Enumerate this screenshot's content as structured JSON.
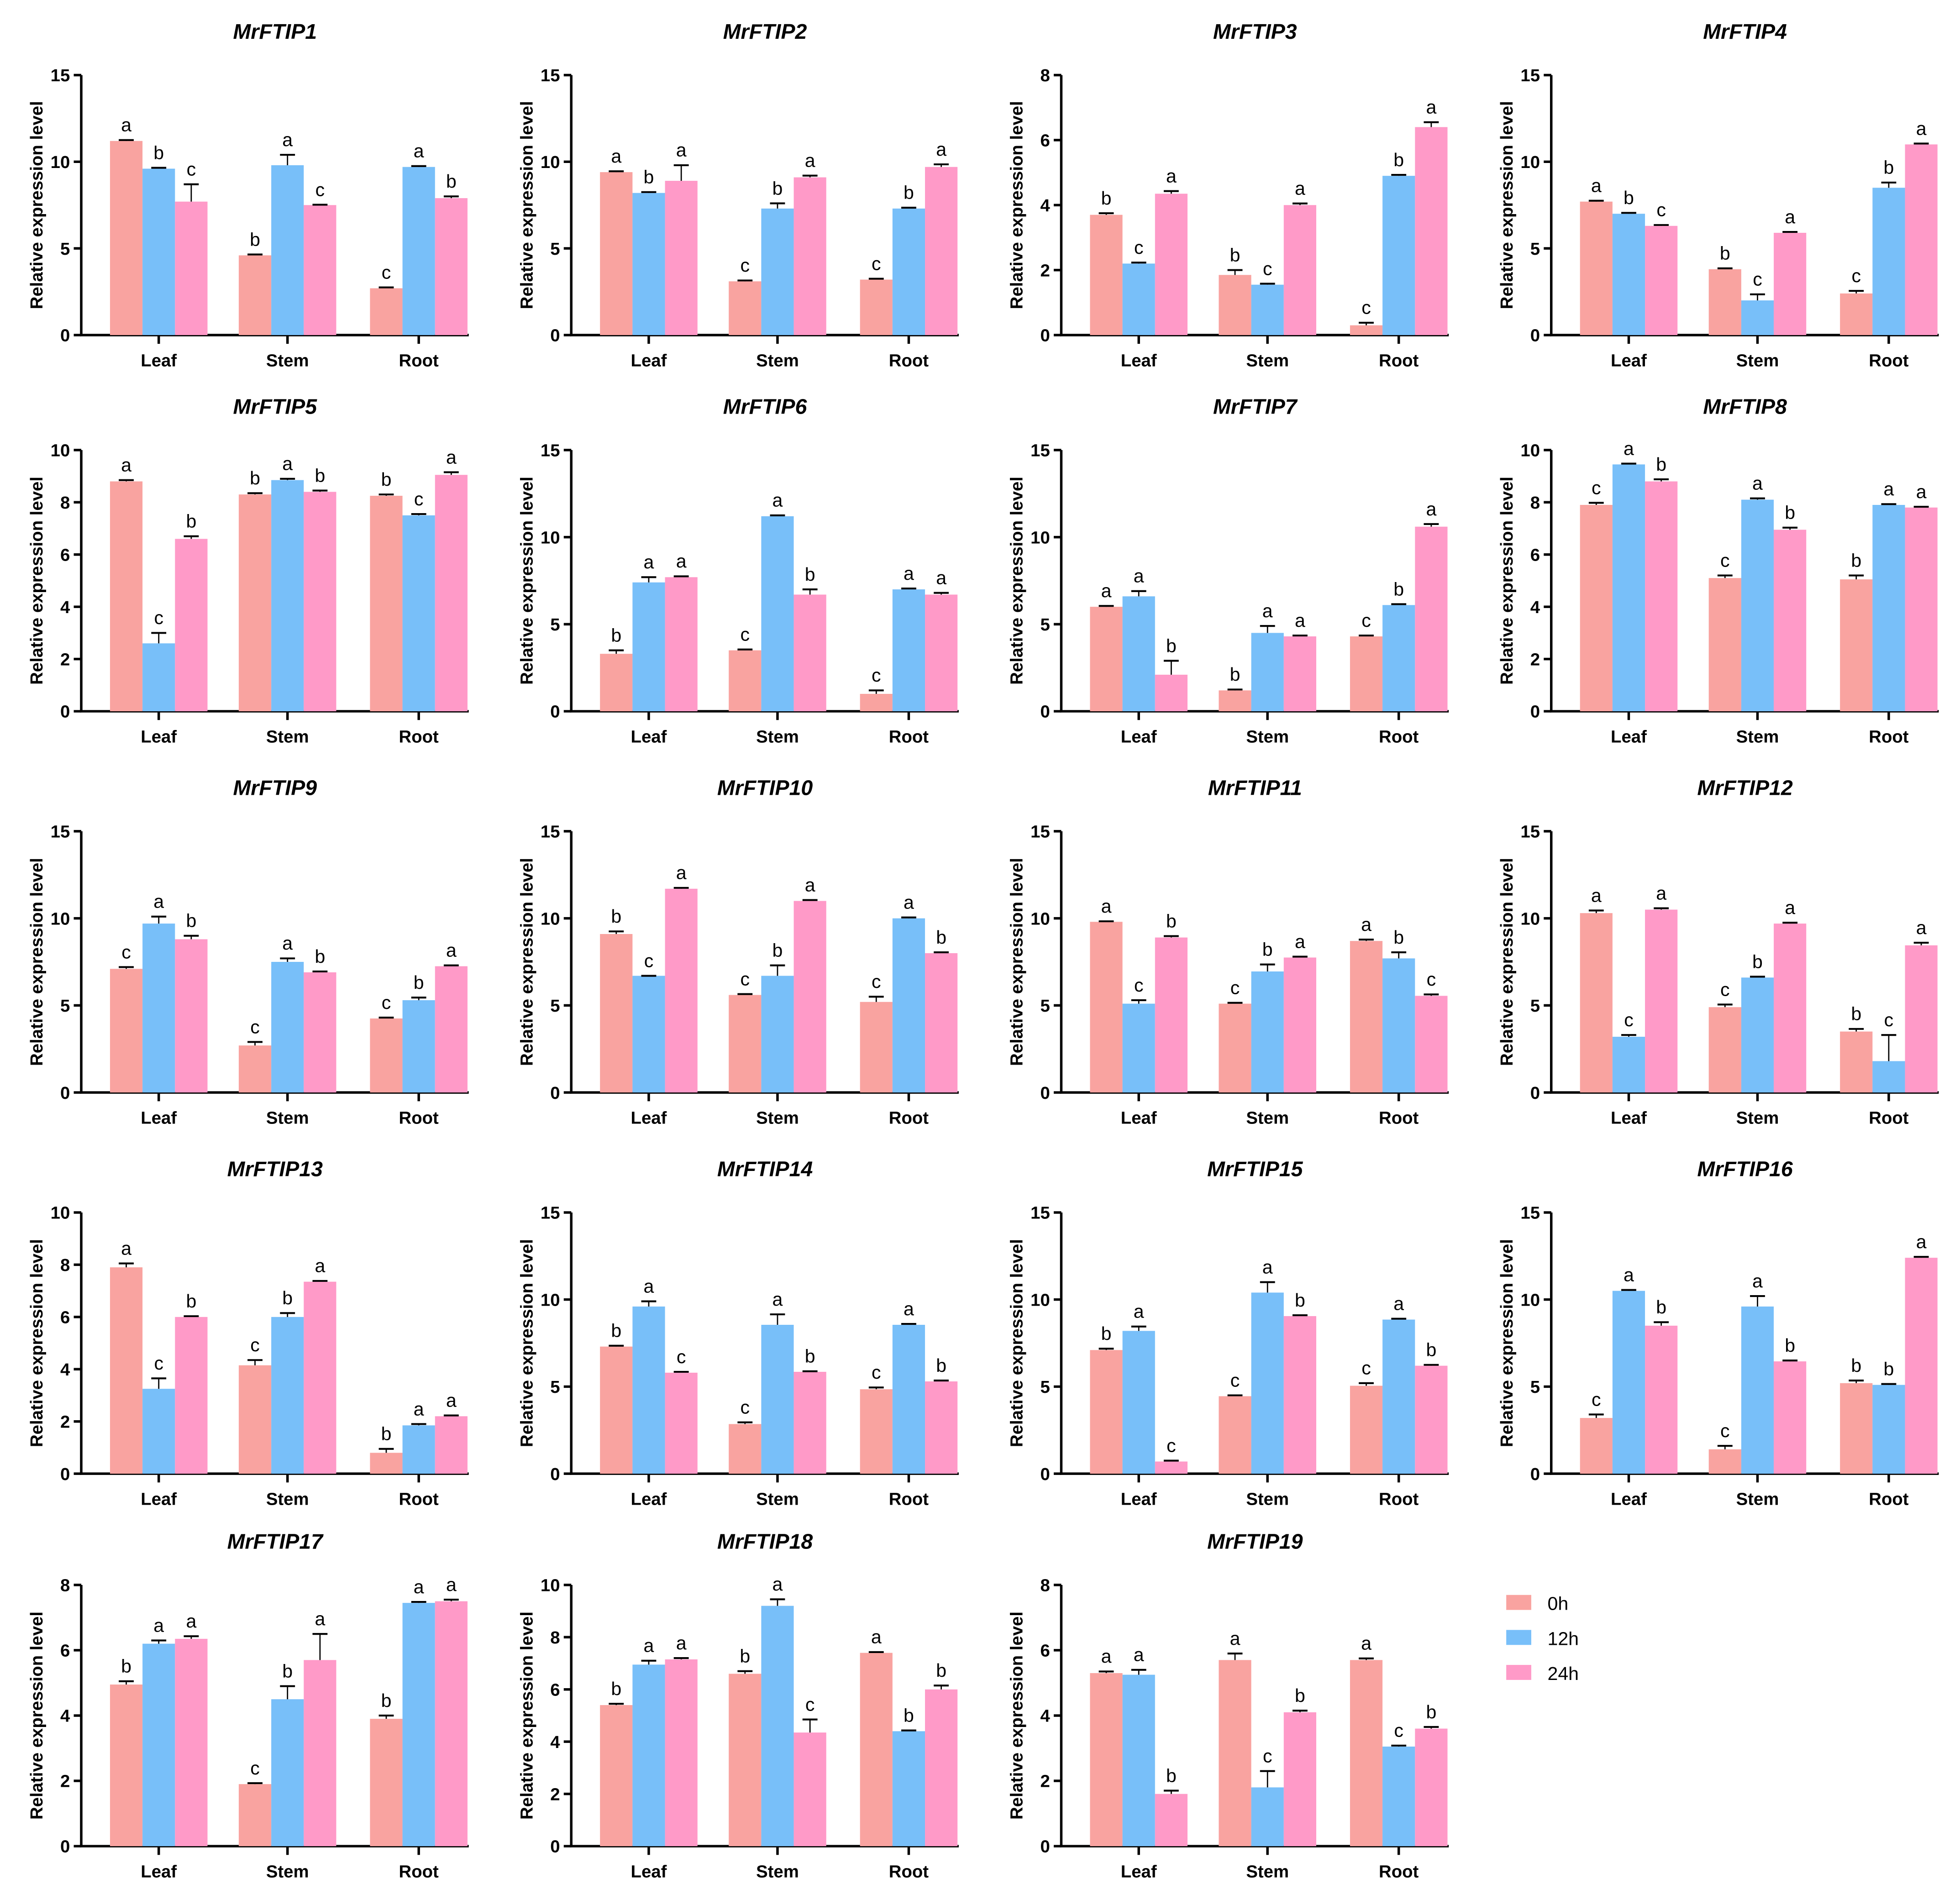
{
  "chart_data": {
    "type": "bar",
    "ylabel": "Relative expression level",
    "categories": [
      "Leaf",
      "Stem",
      "Root"
    ],
    "series_names": [
      "0h",
      "12h",
      "24h"
    ],
    "colors": {
      "0h": "#F9A3A0",
      "12h": "#78BFF9",
      "24h": "#FF9AC8"
    },
    "legend": {
      "position": "bottom-right",
      "entries": [
        "0h",
        "12h",
        "24h"
      ]
    },
    "panels": [
      {
        "title": "MrFTIP1",
        "ylim": [
          0,
          15
        ],
        "yticks": [
          "0",
          "5",
          "10",
          "15"
        ],
        "values": [
          [
            11.2,
            9.6,
            7.7
          ],
          [
            4.6,
            9.8,
            7.5
          ],
          [
            2.7,
            9.7,
            7.9
          ]
        ],
        "errors": [
          [
            0.05,
            0.05,
            1.0
          ],
          [
            0.05,
            0.6,
            0.02
          ],
          [
            0.05,
            0.05,
            0.1
          ]
        ],
        "letters": [
          [
            "a",
            "b",
            "c"
          ],
          [
            "b",
            "a",
            "c"
          ],
          [
            "c",
            "a",
            "b"
          ]
        ]
      },
      {
        "title": "MrFTIP2",
        "ylim": [
          0,
          15
        ],
        "yticks": [
          "0",
          "5",
          "10",
          "15"
        ],
        "values": [
          [
            9.4,
            8.2,
            8.9
          ],
          [
            3.1,
            7.3,
            9.1
          ],
          [
            3.2,
            7.3,
            9.7
          ]
        ],
        "errors": [
          [
            0.05,
            0.05,
            0.9
          ],
          [
            0.05,
            0.3,
            0.1
          ],
          [
            0.05,
            0.05,
            0.15
          ]
        ],
        "letters": [
          [
            "a",
            "b",
            "a"
          ],
          [
            "c",
            "b",
            "a"
          ],
          [
            "c",
            "b",
            "a"
          ]
        ]
      },
      {
        "title": "MrFTIP3",
        "ylim": [
          0,
          8
        ],
        "yticks": [
          "0",
          "2",
          "4",
          "6",
          "8"
        ],
        "values": [
          [
            3.7,
            2.2,
            4.35
          ],
          [
            1.85,
            1.55,
            4.0
          ],
          [
            0.3,
            4.9,
            6.4
          ]
        ],
        "errors": [
          [
            0.05,
            0.03,
            0.08
          ],
          [
            0.15,
            0.03,
            0.05
          ],
          [
            0.08,
            0.03,
            0.15
          ]
        ],
        "letters": [
          [
            "b",
            "c",
            "a"
          ],
          [
            "b",
            "c",
            "a"
          ],
          [
            "c",
            "b",
            "a"
          ]
        ]
      },
      {
        "title": "MrFTIP4",
        "ylim": [
          0,
          15
        ],
        "yticks": [
          "0",
          "5",
          "10",
          "15"
        ],
        "values": [
          [
            7.7,
            7.0,
            6.3
          ],
          [
            3.8,
            2.0,
            5.9
          ],
          [
            2.4,
            8.5,
            11.0
          ]
        ],
        "errors": [
          [
            0.05,
            0.05,
            0.05
          ],
          [
            0.05,
            0.35,
            0.05
          ],
          [
            0.15,
            0.3,
            0.05
          ]
        ],
        "letters": [
          [
            "a",
            "b",
            "c"
          ],
          [
            "b",
            "c",
            "a"
          ],
          [
            "c",
            "b",
            "a"
          ]
        ]
      },
      {
        "title": "MrFTIP5",
        "ylim": [
          0,
          10
        ],
        "yticks": [
          "0",
          "2",
          "4",
          "6",
          "8",
          "10"
        ],
        "values": [
          [
            8.8,
            2.6,
            6.6
          ],
          [
            8.3,
            8.85,
            8.4
          ],
          [
            8.25,
            7.5,
            9.05
          ]
        ],
        "errors": [
          [
            0.05,
            0.4,
            0.1
          ],
          [
            0.05,
            0.05,
            0.05
          ],
          [
            0.05,
            0.05,
            0.1
          ]
        ],
        "letters": [
          [
            "a",
            "c",
            "b"
          ],
          [
            "b",
            "a",
            "b"
          ],
          [
            "b",
            "c",
            "a"
          ]
        ]
      },
      {
        "title": "MrFTIP6",
        "ylim": [
          0,
          15
        ],
        "yticks": [
          "0",
          "5",
          "10",
          "15"
        ],
        "values": [
          [
            3.3,
            7.4,
            7.7
          ],
          [
            3.5,
            11.2,
            6.7
          ],
          [
            1.0,
            7.0,
            6.7
          ]
        ],
        "errors": [
          [
            0.2,
            0.3,
            0.05
          ],
          [
            0.05,
            0.05,
            0.3
          ],
          [
            0.2,
            0.05,
            0.1
          ]
        ],
        "letters": [
          [
            "b",
            "a",
            "a"
          ],
          [
            "c",
            "a",
            "b"
          ],
          [
            "c",
            "a",
            "a"
          ]
        ]
      },
      {
        "title": "MrFTIP7",
        "ylim": [
          0,
          15
        ],
        "yticks": [
          "0",
          "5",
          "10",
          "15"
        ],
        "values": [
          [
            6.0,
            6.6,
            2.1
          ],
          [
            1.2,
            4.5,
            4.3
          ],
          [
            4.3,
            6.1,
            10.6
          ]
        ],
        "errors": [
          [
            0.05,
            0.3,
            0.8
          ],
          [
            0.05,
            0.4,
            0.05
          ],
          [
            0.05,
            0.05,
            0.15
          ]
        ],
        "letters": [
          [
            "a",
            "a",
            "b"
          ],
          [
            "b",
            "a",
            "a"
          ],
          [
            "c",
            "b",
            "a"
          ]
        ]
      },
      {
        "title": "MrFTIP8",
        "ylim": [
          0,
          10
        ],
        "yticks": [
          "0",
          "2",
          "4",
          "6",
          "8",
          "10"
        ],
        "values": [
          [
            7.9,
            9.45,
            8.8
          ],
          [
            5.1,
            8.1,
            6.95
          ],
          [
            5.05,
            7.9,
            7.8
          ]
        ],
        "errors": [
          [
            0.08,
            0.03,
            0.08
          ],
          [
            0.1,
            0.05,
            0.08
          ],
          [
            0.15,
            0.03,
            0.03
          ]
        ],
        "letters": [
          [
            "c",
            "a",
            "b"
          ],
          [
            "c",
            "a",
            "b"
          ],
          [
            "b",
            "a",
            "a"
          ]
        ]
      },
      {
        "title": "MrFTIP9",
        "ylim": [
          0,
          15
        ],
        "yticks": [
          "0",
          "5",
          "10",
          "15"
        ],
        "values": [
          [
            7.1,
            9.7,
            8.8
          ],
          [
            2.7,
            7.5,
            6.9
          ],
          [
            4.25,
            5.3,
            7.25
          ]
        ],
        "errors": [
          [
            0.1,
            0.4,
            0.2
          ],
          [
            0.2,
            0.2,
            0.05
          ],
          [
            0.05,
            0.15,
            0.05
          ]
        ],
        "letters": [
          [
            "c",
            "a",
            "b"
          ],
          [
            "c",
            "a",
            "b"
          ],
          [
            "c",
            "b",
            "a"
          ]
        ]
      },
      {
        "title": "MrFTIP10",
        "ylim": [
          0,
          15
        ],
        "yticks": [
          "0",
          "5",
          "10",
          "15"
        ],
        "values": [
          [
            9.1,
            6.7,
            11.7
          ],
          [
            5.6,
            6.7,
            11.0
          ],
          [
            5.2,
            10.0,
            8.0
          ]
        ],
        "errors": [
          [
            0.15,
            0.0,
            0.05
          ],
          [
            0.05,
            0.6,
            0.05
          ],
          [
            0.3,
            0.05,
            0.05
          ]
        ],
        "letters": [
          [
            "b",
            "c",
            "a"
          ],
          [
            "c",
            "b",
            "a"
          ],
          [
            "c",
            "a",
            "b"
          ]
        ]
      },
      {
        "title": "MrFTIP11",
        "ylim": [
          0,
          15
        ],
        "yticks": [
          "0",
          "5",
          "10",
          "15"
        ],
        "values": [
          [
            9.8,
            5.1,
            8.9
          ],
          [
            5.1,
            6.95,
            7.75
          ],
          [
            8.7,
            7.7,
            5.55
          ]
        ],
        "errors": [
          [
            0.03,
            0.2,
            0.08
          ],
          [
            0.05,
            0.4,
            0.05
          ],
          [
            0.08,
            0.35,
            0.08
          ]
        ],
        "letters": [
          [
            "a",
            "c",
            "b"
          ],
          [
            "c",
            "b",
            "a"
          ],
          [
            "a",
            "b",
            "c"
          ]
        ]
      },
      {
        "title": "MrFTIP12",
        "ylim": [
          0,
          15
        ],
        "yticks": [
          "0",
          "5",
          "10",
          "15"
        ],
        "values": [
          [
            10.3,
            3.2,
            10.5
          ],
          [
            4.9,
            6.6,
            9.7
          ],
          [
            3.5,
            1.8,
            8.45
          ]
        ],
        "errors": [
          [
            0.15,
            0.1,
            0.08
          ],
          [
            0.15,
            0.05,
            0.05
          ],
          [
            0.15,
            1.5,
            0.15
          ]
        ],
        "letters": [
          [
            "a",
            "c",
            "a"
          ],
          [
            "c",
            "b",
            "a"
          ],
          [
            "b",
            "c",
            "a"
          ]
        ]
      },
      {
        "title": "MrFTIP13",
        "ylim": [
          0,
          10
        ],
        "yticks": [
          "0",
          "2",
          "4",
          "6",
          "8",
          "10"
        ],
        "values": [
          [
            7.9,
            3.25,
            6.0
          ],
          [
            4.15,
            6.0,
            7.35
          ],
          [
            0.8,
            1.85,
            2.2
          ]
        ],
        "errors": [
          [
            0.15,
            0.4,
            0.03
          ],
          [
            0.2,
            0.15,
            0.03
          ],
          [
            0.15,
            0.05,
            0.03
          ]
        ],
        "letters": [
          [
            "a",
            "c",
            "b"
          ],
          [
            "c",
            "b",
            "a"
          ],
          [
            "b",
            "a",
            "a"
          ]
        ]
      },
      {
        "title": "MrFTIP14",
        "ylim": [
          0,
          15
        ],
        "yticks": [
          "0",
          "5",
          "10",
          "15"
        ],
        "values": [
          [
            7.3,
            9.6,
            5.8
          ],
          [
            2.85,
            8.55,
            5.85
          ],
          [
            4.85,
            8.55,
            5.3
          ]
        ],
        "errors": [
          [
            0.05,
            0.3,
            0.05
          ],
          [
            0.1,
            0.6,
            0.03
          ],
          [
            0.1,
            0.05,
            0.05
          ]
        ],
        "letters": [
          [
            "b",
            "a",
            "c"
          ],
          [
            "c",
            "a",
            "b"
          ],
          [
            "c",
            "a",
            "b"
          ]
        ]
      },
      {
        "title": "MrFTIP15",
        "ylim": [
          0,
          15
        ],
        "yticks": [
          "0",
          "5",
          "10",
          "15"
        ],
        "values": [
          [
            7.1,
            8.2,
            0.7
          ],
          [
            4.45,
            10.4,
            9.05
          ],
          [
            5.05,
            8.85,
            6.2
          ]
        ],
        "errors": [
          [
            0.08,
            0.25,
            0.05
          ],
          [
            0.05,
            0.6,
            0.05
          ],
          [
            0.15,
            0.05,
            0.05
          ]
        ],
        "letters": [
          [
            "b",
            "a",
            "c"
          ],
          [
            "c",
            "a",
            "b"
          ],
          [
            "c",
            "a",
            "b"
          ]
        ]
      },
      {
        "title": "MrFTIP16",
        "ylim": [
          0,
          15
        ],
        "yticks": [
          "0",
          "5",
          "10",
          "15"
        ],
        "values": [
          [
            3.2,
            10.5,
            8.5
          ],
          [
            1.4,
            9.6,
            6.45
          ],
          [
            5.2,
            5.1,
            12.4
          ]
        ],
        "errors": [
          [
            0.2,
            0.05,
            0.2
          ],
          [
            0.2,
            0.6,
            0.05
          ],
          [
            0.15,
            0.05,
            0.05
          ]
        ],
        "letters": [
          [
            "c",
            "a",
            "b"
          ],
          [
            "c",
            "a",
            "b"
          ],
          [
            "b",
            "b",
            "a"
          ]
        ]
      },
      {
        "title": "MrFTIP17",
        "ylim": [
          0,
          8
        ],
        "yticks": [
          "0",
          "2",
          "4",
          "6",
          "8"
        ],
        "values": [
          [
            4.95,
            6.2,
            6.35
          ],
          [
            1.9,
            4.5,
            5.7
          ],
          [
            3.9,
            7.45,
            7.5
          ]
        ],
        "errors": [
          [
            0.1,
            0.1,
            0.08
          ],
          [
            0.03,
            0.4,
            0.8
          ],
          [
            0.1,
            0.03,
            0.05
          ]
        ],
        "letters": [
          [
            "b",
            "a",
            "a"
          ],
          [
            "c",
            "b",
            "a"
          ],
          [
            "b",
            "a",
            "a"
          ]
        ]
      },
      {
        "title": "MrFTIP18",
        "ylim": [
          0,
          10
        ],
        "yticks": [
          "0",
          "2",
          "4",
          "6",
          "8",
          "10"
        ],
        "values": [
          [
            5.4,
            6.95,
            7.15
          ],
          [
            6.6,
            9.2,
            4.35
          ],
          [
            7.4,
            4.4,
            6.0
          ]
        ],
        "errors": [
          [
            0.05,
            0.15,
            0.05
          ],
          [
            0.1,
            0.25,
            0.5
          ],
          [
            0.03,
            0.03,
            0.15
          ]
        ],
        "letters": [
          [
            "b",
            "a",
            "a"
          ],
          [
            "b",
            "a",
            "c"
          ],
          [
            "a",
            "b",
            "b"
          ]
        ]
      },
      {
        "title": "MrFTIP19",
        "ylim": [
          0,
          8
        ],
        "yticks": [
          "0",
          "2",
          "4",
          "6",
          "8"
        ],
        "values": [
          [
            5.3,
            5.25,
            1.6
          ],
          [
            5.7,
            1.8,
            4.1
          ],
          [
            5.7,
            3.05,
            3.6
          ]
        ],
        "errors": [
          [
            0.05,
            0.15,
            0.1
          ],
          [
            0.2,
            0.5,
            0.05
          ],
          [
            0.05,
            0.03,
            0.05
          ]
        ],
        "letters": [
          [
            "a",
            "a",
            "b"
          ],
          [
            "a",
            "c",
            "b"
          ],
          [
            "a",
            "c",
            "b"
          ]
        ]
      }
    ]
  }
}
